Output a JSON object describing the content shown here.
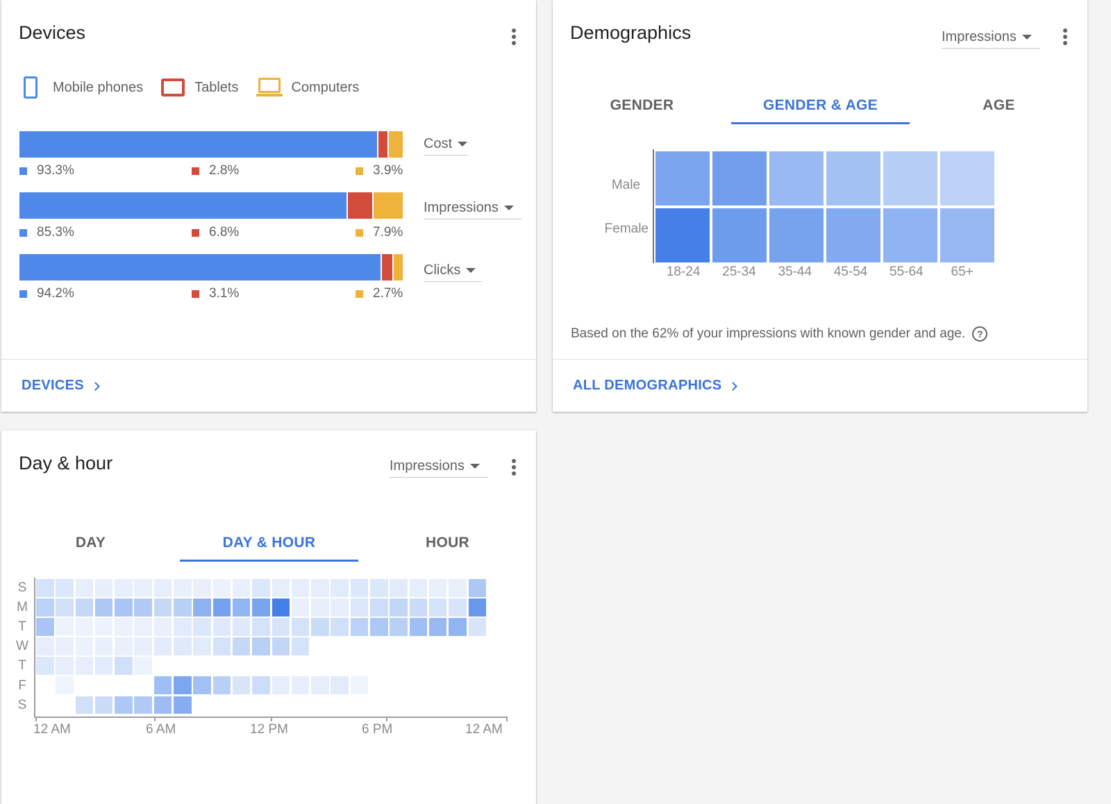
{
  "colors": {
    "blue": "#4e88e9",
    "red": "#d34b3b",
    "yellow": "#edb33b",
    "accent": "#3b73d8"
  },
  "devices": {
    "title": "Devices",
    "legend": [
      {
        "label": "Mobile phones",
        "icon": "mobile-phone-icon"
      },
      {
        "label": "Tablets",
        "icon": "tablet-icon"
      },
      {
        "label": "Computers",
        "icon": "computer-icon"
      }
    ],
    "metrics": [
      {
        "dropdown": "Cost",
        "values": [
          93.3,
          2.8,
          3.9
        ],
        "labels": [
          "93.3%",
          "2.8%",
          "3.9%"
        ]
      },
      {
        "dropdown": "Impressions",
        "values": [
          85.3,
          6.8,
          7.9
        ],
        "labels": [
          "85.3%",
          "6.8%",
          "7.9%"
        ]
      },
      {
        "dropdown": "Clicks",
        "values": [
          94.2,
          3.1,
          2.7
        ],
        "labels": [
          "94.2%",
          "3.1%",
          "2.7%"
        ]
      }
    ],
    "footer_link": "DEVICES"
  },
  "demographics": {
    "title": "Demographics",
    "metric_dropdown": "Impressions",
    "tabs": [
      "GENDER",
      "GENDER & AGE",
      "AGE"
    ],
    "active_tab": 1,
    "rows": [
      "Male",
      "Female"
    ],
    "columns": [
      "18-24",
      "25-34",
      "35-44",
      "45-54",
      "55-64",
      "65+"
    ],
    "intensity": [
      [
        0.62,
        0.7,
        0.42,
        0.34,
        0.22,
        0.18
      ],
      [
        1.0,
        0.72,
        0.66,
        0.58,
        0.48,
        0.44
      ]
    ],
    "note": "Based on the 62% of your impressions with known gender and age.",
    "footer_link": "ALL DEMOGRAPHICS"
  },
  "day_hour": {
    "title": "Day & hour",
    "metric_dropdown": "Impressions",
    "tabs": [
      "DAY",
      "DAY & HOUR",
      "HOUR"
    ],
    "active_tab": 1,
    "days": [
      "S",
      "M",
      "T",
      "W",
      "T",
      "F",
      "S"
    ],
    "x_labels": [
      "12 AM",
      "6 AM",
      "12 PM",
      "6 PM",
      "12 AM"
    ],
    "intensity": [
      [
        0.18,
        0.14,
        0.07,
        0.07,
        0.07,
        0.06,
        0.07,
        0.06,
        0.06,
        0.05,
        0.06,
        0.14,
        0.08,
        0.08,
        0.08,
        0.1,
        0.14,
        0.14,
        0.1,
        0.08,
        0.06,
        0.06,
        0.4,
        0.0
      ],
      [
        0.32,
        0.2,
        0.26,
        0.4,
        0.42,
        0.38,
        0.26,
        0.34,
        0.58,
        0.72,
        0.56,
        0.7,
        1.0,
        0.06,
        0.08,
        0.08,
        0.14,
        0.22,
        0.28,
        0.24,
        0.18,
        0.16,
        0.8,
        0.0
      ],
      [
        0.42,
        0.04,
        0.04,
        0.04,
        0.05,
        0.05,
        0.06,
        0.1,
        0.14,
        0.12,
        0.12,
        0.18,
        0.16,
        0.18,
        0.24,
        0.2,
        0.32,
        0.4,
        0.34,
        0.48,
        0.52,
        0.56,
        0.16,
        0.0
      ],
      [
        0.08,
        0.06,
        0.05,
        0.06,
        0.06,
        0.07,
        0.1,
        0.12,
        0.1,
        0.18,
        0.26,
        0.34,
        0.28,
        0.18,
        0.0,
        0.0,
        0.0,
        0.0,
        0.0,
        0.0,
        0.0,
        0.0,
        0.0,
        0.0
      ],
      [
        0.14,
        0.08,
        0.08,
        0.1,
        0.2,
        0.04,
        0.0,
        0.0,
        0.0,
        0.0,
        0.0,
        0.0,
        0.0,
        0.0,
        0.0,
        0.0,
        0.0,
        0.0,
        0.0,
        0.0,
        0.0,
        0.0,
        0.0,
        0.0
      ],
      [
        0.0,
        0.03,
        0.0,
        0.0,
        0.0,
        0.0,
        0.48,
        0.68,
        0.46,
        0.34,
        0.16,
        0.22,
        0.08,
        0.08,
        0.08,
        0.1,
        0.03,
        0.0,
        0.0,
        0.0,
        0.0,
        0.0,
        0.0,
        0.0
      ],
      [
        0.0,
        0.0,
        0.2,
        0.24,
        0.4,
        0.38,
        0.5,
        0.62,
        0.0,
        0.0,
        0.0,
        0.0,
        0.0,
        0.0,
        0.0,
        0.0,
        0.0,
        0.0,
        0.0,
        0.0,
        0.0,
        0.0,
        0.0,
        0.0
      ]
    ]
  }
}
